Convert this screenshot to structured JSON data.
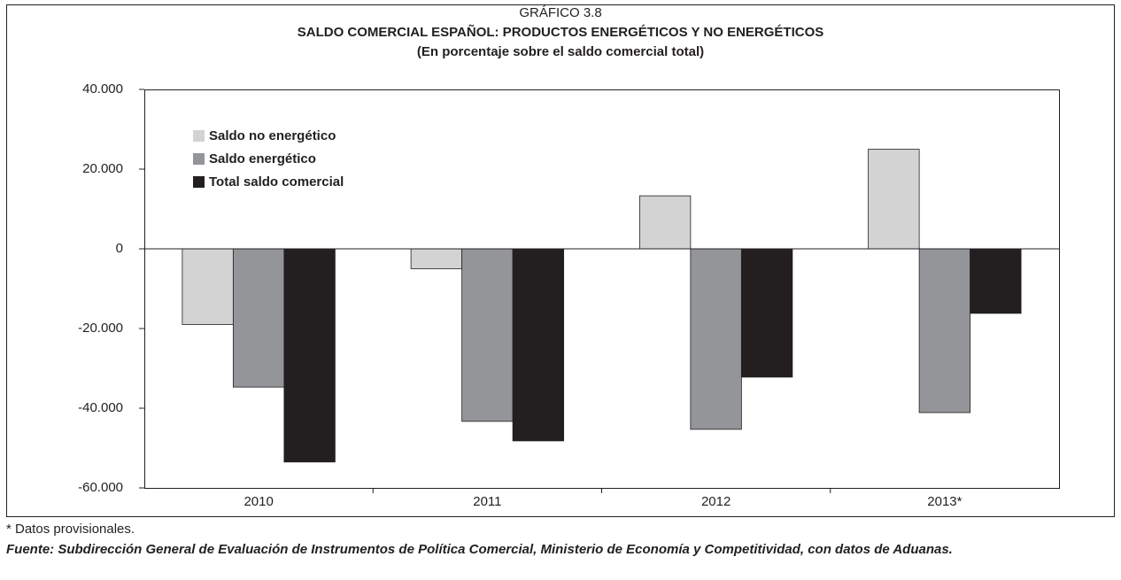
{
  "chart_data": {
    "type": "bar",
    "supertitle": "GRÁFICO 3.8",
    "title": "SALDO COMERCIAL ESPAÑOL: PRODUCTOS ENERGÉTICOS Y NO ENERGÉTICOS",
    "subtitle": "(En porcentaje sobre el saldo comercial total)",
    "categories": [
      "2010",
      "2011",
      "2012",
      "2013*"
    ],
    "series": [
      {
        "name": "Saldo no energético",
        "color": "#d3d3d4",
        "values": [
          -19000,
          -5000,
          13300,
          25000
        ]
      },
      {
        "name": "Saldo energético",
        "color": "#939598",
        "values": [
          -34700,
          -43300,
          -45300,
          -41100
        ]
      },
      {
        "name": "Total saldo comercial",
        "color": "#231f20",
        "values": [
          -53500,
          -48200,
          -32200,
          -16200
        ]
      }
    ],
    "ylim": [
      -60000,
      40000
    ],
    "yticks": [
      {
        "value": -60000,
        "label": "-60.000"
      },
      {
        "value": -40000,
        "label": "-40.000"
      },
      {
        "value": -20000,
        "label": "-20.000"
      },
      0,
      {
        "value": 20000,
        "label": "20.000"
      },
      {
        "value": 40000,
        "label": "40.000"
      }
    ],
    "legend": "upper left",
    "footnote": "* Datos provisionales.",
    "source": "Fuente: Subdirección General de Evaluación de Instrumentos de Política Comercial, Ministerio de Economía y Competitividad, con datos de Aduanas."
  }
}
